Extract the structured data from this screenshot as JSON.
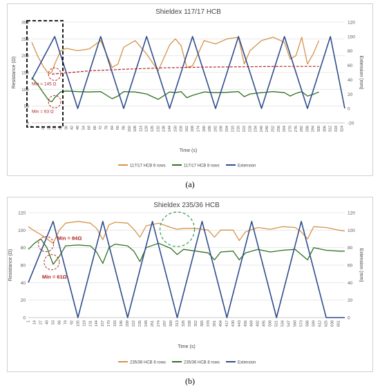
{
  "chart_data": [
    {
      "type": "line",
      "title": "Shieldex 117/17 HCB",
      "panel_label": "(a)",
      "xlabel": "Time (s)",
      "ylabel_left": "Resistance (Ω)",
      "ylabel_right": "Extension (mm)",
      "xlim": [
        0,
        327
      ],
      "ylim_left": [
        0,
        300
      ],
      "ylim_right": [
        -20,
        120
      ],
      "yticks_left": [
        0,
        50,
        100,
        150,
        200,
        250,
        300
      ],
      "yticks_right": [
        -20,
        0,
        20,
        40,
        60,
        80,
        100,
        120
      ],
      "xtick_labels": [
        "0",
        "6",
        "12",
        "18",
        "24",
        "30",
        "36",
        "42",
        "48",
        "54",
        "60",
        "66",
        "72",
        "78",
        "84",
        "90",
        "96",
        "102",
        "108",
        "114",
        "120",
        "126",
        "132",
        "138",
        "144",
        "150",
        "156",
        "162",
        "168",
        "174",
        "180",
        "186",
        "192",
        "198",
        "204",
        "210",
        "216",
        "222",
        "228",
        "234",
        "240",
        "246",
        "252",
        "258",
        "264",
        "270",
        "276",
        "282",
        "288",
        "294",
        "300",
        "306",
        "312",
        "318",
        "324"
      ],
      "grid": true,
      "legend_position": "bottom",
      "series": [
        {
          "name": "117/17 HCB 6 rows",
          "axis": "left",
          "color": "#D4934A",
          "x": [
            0,
            6,
            12,
            18,
            21,
            24,
            30,
            36,
            48,
            60,
            72,
            84,
            90,
            96,
            108,
            120,
            132,
            144,
            150,
            156,
            162,
            168,
            180,
            192,
            204,
            216,
            222,
            228,
            240,
            252,
            264,
            270,
            276,
            282,
            288,
            294,
            300
          ],
          "y": [
            240,
            200,
            168,
            145,
            152,
            175,
            214,
            222,
            215,
            220,
            245,
            165,
            175,
            225,
            245,
            205,
            155,
            232,
            250,
            230,
            165,
            170,
            245,
            235,
            250,
            255,
            175,
            215,
            245,
            255,
            240,
            190,
            200,
            255,
            175,
            205,
            245
          ]
        },
        {
          "name": "117/17 HCB 8 rows",
          "axis": "left",
          "color": "#2E6F1E",
          "x": [
            0,
            6,
            12,
            18,
            21,
            24,
            30,
            36,
            48,
            60,
            72,
            84,
            90,
            96,
            108,
            120,
            132,
            144,
            150,
            156,
            162,
            168,
            180,
            192,
            204,
            216,
            222,
            228,
            240,
            252,
            264,
            270,
            276,
            282,
            288,
            294,
            300
          ],
          "y": [
            135,
            115,
            90,
            66,
            63,
            75,
            92,
            95,
            93,
            92,
            93,
            72,
            80,
            93,
            92,
            86,
            70,
            92,
            90,
            93,
            75,
            82,
            92,
            90,
            91,
            93,
            78,
            86,
            90,
            93,
            90,
            80,
            88,
            93,
            80,
            85,
            92
          ]
        },
        {
          "name": "Extension",
          "axis": "right",
          "color": "#2F4D8C",
          "x": [
            0,
            24,
            48,
            72,
            96,
            120,
            144,
            168,
            192,
            216,
            240,
            264,
            288,
            312,
            327
          ],
          "y": [
            40,
            100,
            0,
            100,
            0,
            100,
            0,
            100,
            0,
            100,
            0,
            100,
            0,
            100,
            0
          ]
        }
      ],
      "annotations": [
        {
          "text": "Min = 145 Ω",
          "x": 21,
          "y": 145
        },
        {
          "text": "Min = 63 Ω",
          "x": 21,
          "y": 63
        }
      ],
      "trend": {
        "color": "#B22222",
        "x": [
          21,
          60,
          100,
          140,
          180,
          220,
          260,
          300
        ],
        "y": [
          145,
          155,
          160,
          164,
          166,
          167,
          168,
          168
        ]
      }
    },
    {
      "type": "line",
      "title": "Shieldex 235/36 HCB",
      "panel_label": "(b)",
      "xlabel": "Time (s)",
      "ylabel_left": "Resistance (Ω)",
      "ylabel_right": "Extension (mm)",
      "xlim": [
        1,
        664
      ],
      "ylim_left": [
        0,
        120
      ],
      "ylim_right": [
        0,
        120
      ],
      "yticks_left": [
        0,
        20,
        40,
        60,
        80,
        100,
        120
      ],
      "yticks_right": [
        0,
        20,
        40,
        60,
        80,
        100,
        120
      ],
      "xtick_labels": [
        "1",
        "14",
        "27",
        "40",
        "53",
        "66",
        "79",
        "92",
        "105",
        "118",
        "131",
        "144",
        "157",
        "170",
        "183",
        "196",
        "209",
        "222",
        "235",
        "248",
        "261",
        "274",
        "287",
        "300",
        "313",
        "326",
        "339",
        "352",
        "365",
        "378",
        "391",
        "404",
        "417",
        "430",
        "443",
        "456",
        "469",
        "482",
        "495",
        "508",
        "521",
        "534",
        "547",
        "560",
        "573",
        "586",
        "599",
        "612",
        "625",
        "638",
        "651"
      ],
      "grid": true,
      "legend_position": "bottom",
      "series": [
        {
          "name": "235/36 HCB 6 rows",
          "axis": "left",
          "color": "#D4934A",
          "x": [
            1,
            14,
            27,
            40,
            53,
            66,
            79,
            105,
            131,
            144,
            157,
            170,
            183,
            209,
            222,
            235,
            248,
            274,
            300,
            313,
            326,
            352,
            378,
            391,
            404,
            430,
            443,
            456,
            482,
            508,
            534,
            560,
            573,
            586,
            599,
            625,
            651,
            664
          ],
          "y": [
            104,
            99,
            95,
            90,
            85,
            100,
            108,
            110,
            108,
            102,
            89,
            106,
            109,
            108,
            101,
            92,
            105,
            108,
            103,
            101,
            102,
            102,
            100,
            92,
            100,
            100,
            88,
            98,
            103,
            101,
            104,
            103,
            98,
            90,
            104,
            103,
            100,
            99
          ]
        },
        {
          "name": "235/36 HCB 8 rows",
          "axis": "left",
          "color": "#2E6F1E",
          "x": [
            1,
            14,
            27,
            40,
            53,
            66,
            79,
            105,
            131,
            144,
            157,
            170,
            183,
            209,
            222,
            235,
            248,
            274,
            300,
            313,
            326,
            352,
            378,
            391,
            404,
            430,
            443,
            456,
            482,
            508,
            534,
            560,
            573,
            586,
            599,
            625,
            651,
            664
          ],
          "y": [
            78,
            85,
            90,
            80,
            61,
            70,
            82,
            83,
            82,
            75,
            62,
            80,
            84,
            82,
            76,
            64,
            80,
            85,
            79,
            72,
            78,
            76,
            74,
            66,
            75,
            76,
            66,
            74,
            78,
            75,
            77,
            78,
            72,
            66,
            80,
            77,
            76,
            76
          ]
        },
        {
          "name": "Extension",
          "axis": "right",
          "color": "#2F4D8C",
          "x": [
            1,
            53,
            105,
            157,
            209,
            261,
            313,
            365,
            417,
            469,
            521,
            573,
            625,
            664
          ],
          "y": [
            40,
            110,
            0,
            110,
            0,
            110,
            0,
            110,
            0,
            110,
            0,
            110,
            0,
            0
          ]
        }
      ],
      "annotations": [
        {
          "text": "Min = 84Ω",
          "x": 38,
          "y": 84
        },
        {
          "text": "Min = 61Ω",
          "x": 50,
          "y": 61
        }
      ]
    }
  ]
}
